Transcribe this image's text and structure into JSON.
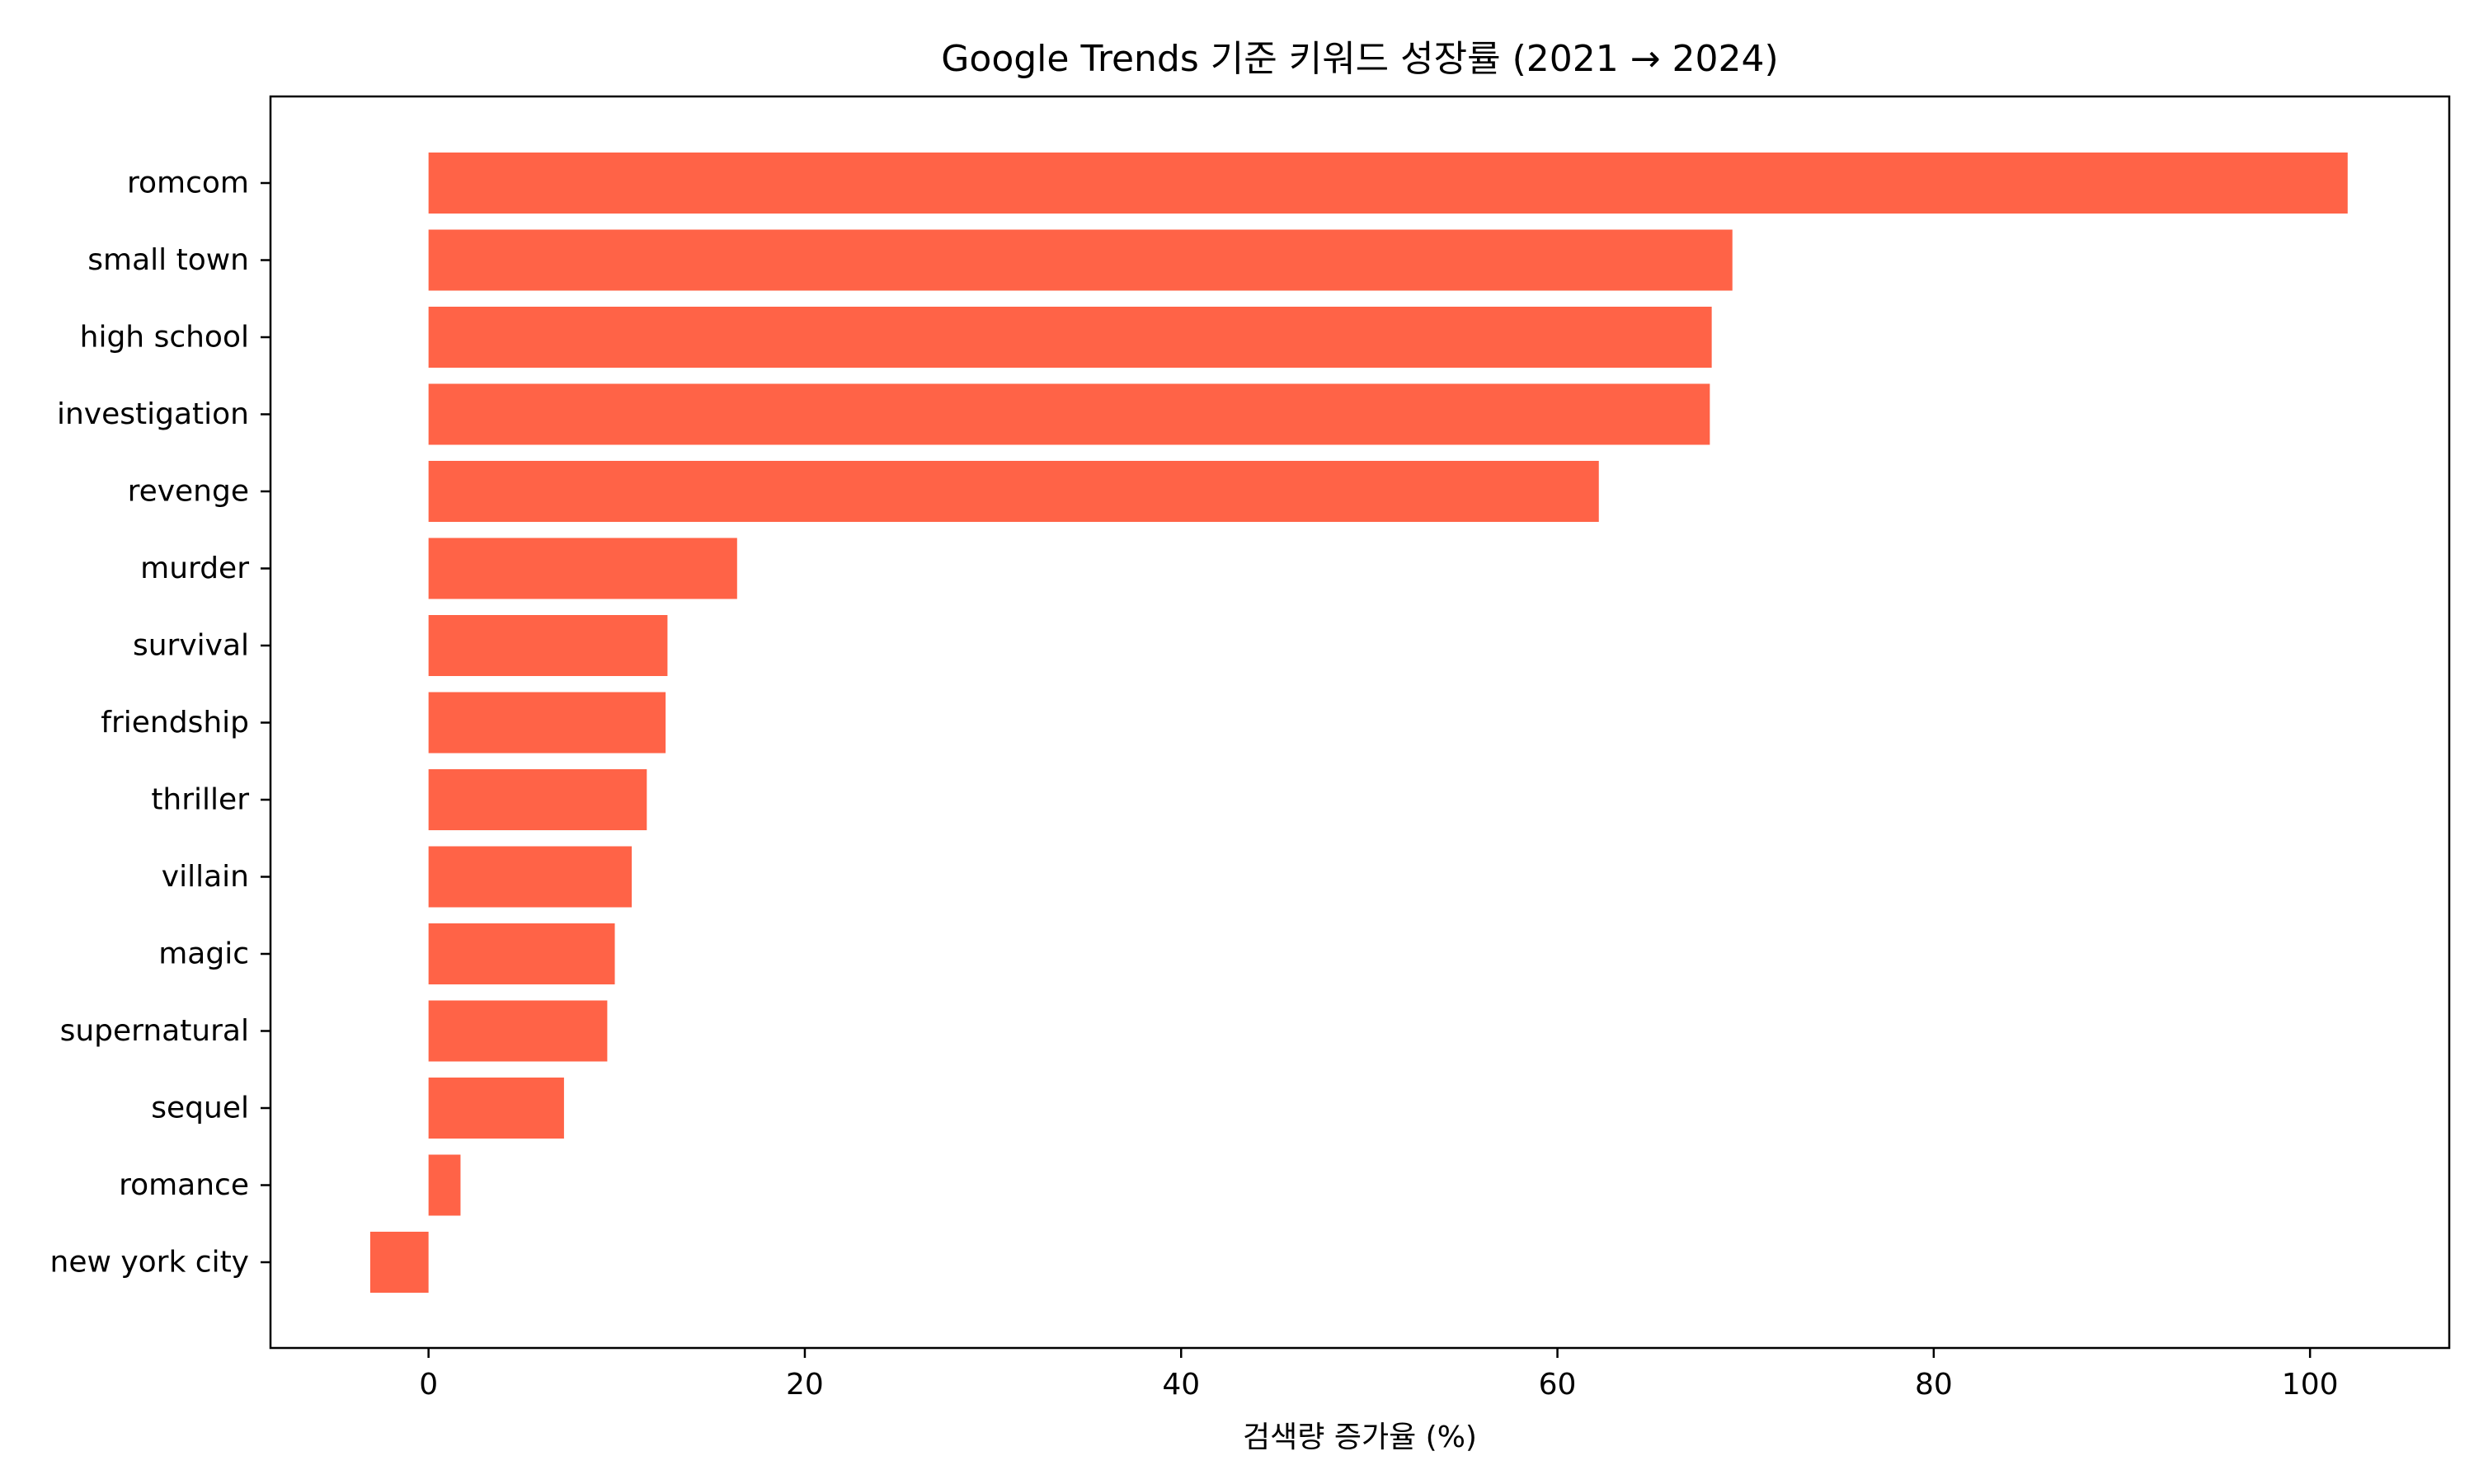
{
  "chart_data": {
    "type": "bar",
    "orientation": "horizontal",
    "title": "Google Trends 기준 키워드 성장률 (2021 → 2024)",
    "xlabel": "검색량 증가율 (%)",
    "ylabel": "",
    "categories": [
      "romcom",
      "small town",
      "high school",
      "investigation",
      "revenge",
      "murder",
      "survival",
      "friendship",
      "thriller",
      "villain",
      "magic",
      "supernatural",
      "sequel",
      "romance",
      "new york city"
    ],
    "values": [
      102.0,
      69.3,
      68.2,
      68.1,
      62.2,
      16.4,
      12.7,
      12.6,
      11.6,
      10.8,
      9.9,
      9.5,
      7.2,
      1.7,
      -3.1
    ],
    "xlim": [
      -8.4,
      107.4
    ],
    "xticks": [
      0,
      20,
      40,
      60,
      80,
      100
    ],
    "xtick_labels": [
      "0",
      "20",
      "40",
      "60",
      "80",
      "100"
    ],
    "bar_color": "#ff6347",
    "grid": false,
    "legend": "none"
  }
}
